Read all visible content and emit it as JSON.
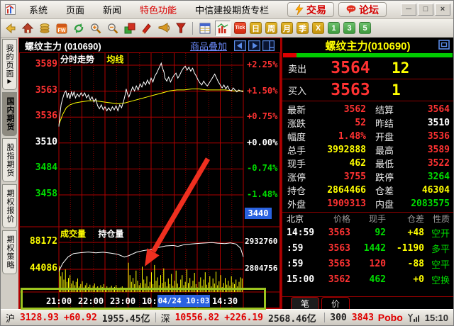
{
  "menu": {
    "items": [
      {
        "label": "系统"
      },
      {
        "label": "页面"
      },
      {
        "label": "新闻"
      },
      {
        "label": "特色功能"
      },
      {
        "label": "中信建投期货专栏"
      }
    ],
    "trade_button": "交易",
    "forum_button": "论坛",
    "window_controls": {
      "minimize": "─",
      "maximize": "□",
      "close": "×"
    }
  },
  "toolbar": {
    "labels": {
      "tick": "Tick",
      "day": "日",
      "week": "周",
      "month": "月",
      "season": "季",
      "x": "X",
      "m1": "1",
      "m3": "3",
      "m5": "5"
    }
  },
  "sidebar": {
    "tabs": [
      {
        "label": "我的页面",
        "arrow": "▶",
        "selected": false
      },
      {
        "label": "国内期货",
        "selected": true
      },
      {
        "label": "股指期货",
        "selected": false
      },
      {
        "label": "期权报价",
        "selected": false
      },
      {
        "label": "期权策略",
        "selected": false
      }
    ]
  },
  "chart": {
    "symbol_title": "螺纹主力 (010690)",
    "overlay_link": "商品叠加",
    "pane_title": "分时走势",
    "ma_label": "均线",
    "volume_label": "成交量",
    "oi_label": "持仓量",
    "cursor_time": "04/24 10:03",
    "price_tag": "3440",
    "price_axis": [
      {
        "text": "3589",
        "color": "#ff3232"
      },
      {
        "text": "3563",
        "color": "#ff3232"
      },
      {
        "text": "3536",
        "color": "#ff3232"
      },
      {
        "text": "3510",
        "color": "#ffffff"
      },
      {
        "text": "3484",
        "color": "#00dd00"
      },
      {
        "text": "3458",
        "color": "#00dd00"
      }
    ],
    "pct_axis": [
      {
        "text": "+2.25%",
        "color": "#ff3232"
      },
      {
        "text": "+1.50%",
        "color": "#ff3232"
      },
      {
        "text": "+0.75%",
        "color": "#ff3232"
      },
      {
        "text": "+0.00%",
        "color": "#ffffff"
      },
      {
        "text": "-0.74%",
        "color": "#00dd00"
      },
      {
        "text": "-1.48%",
        "color": "#00dd00"
      }
    ],
    "vol_axis_left": [
      "88172",
      "44086"
    ],
    "vol_axis_right": [
      "2932760",
      "2804756"
    ],
    "time_axis": [
      {
        "text": "21:00",
        "f": 0.0
      },
      {
        "text": "22:00",
        "f": 0.172
      },
      {
        "text": "23:00",
        "f": 0.345
      },
      {
        "text": "10:00",
        "f": 0.52
      },
      {
        "text": "14:30",
        "f": 0.9
      }
    ]
  },
  "chart_data": {
    "type": "line",
    "title": "分时走势",
    "y_levels": [
      3589,
      3563,
      3536,
      3510,
      3484,
      3458
    ],
    "pct_levels": [
      "+2.25%",
      "+1.50%",
      "+0.75%",
      "+0.00%",
      "-0.74%",
      "-1.48%"
    ],
    "price_line": [
      [
        0,
        3527
      ],
      [
        0.006,
        3540
      ],
      [
        0.012,
        3549
      ],
      [
        0.02,
        3555
      ],
      [
        0.03,
        3561
      ],
      [
        0.038,
        3563
      ],
      [
        0.045,
        3556
      ],
      [
        0.052,
        3561
      ],
      [
        0.06,
        3555
      ],
      [
        0.068,
        3562
      ],
      [
        0.075,
        3558
      ],
      [
        0.082,
        3562
      ],
      [
        0.09,
        3556
      ],
      [
        0.1,
        3560
      ],
      [
        0.11,
        3557
      ],
      [
        0.12,
        3561
      ],
      [
        0.13,
        3558
      ],
      [
        0.14,
        3561
      ],
      [
        0.15,
        3556
      ],
      [
        0.16,
        3559
      ],
      [
        0.17,
        3554
      ],
      [
        0.18,
        3557
      ],
      [
        0.19,
        3552
      ],
      [
        0.2,
        3555
      ],
      [
        0.21,
        3548
      ],
      [
        0.22,
        3545
      ],
      [
        0.23,
        3549
      ],
      [
        0.24,
        3544
      ],
      [
        0.25,
        3547
      ],
      [
        0.26,
        3543
      ],
      [
        0.27,
        3546
      ],
      [
        0.28,
        3543
      ],
      [
        0.29,
        3547
      ],
      [
        0.3,
        3544
      ],
      [
        0.31,
        3548
      ],
      [
        0.32,
        3543
      ],
      [
        0.33,
        3549
      ],
      [
        0.34,
        3546
      ],
      [
        0.35,
        3552
      ],
      [
        0.358,
        3558
      ],
      [
        0.365,
        3565
      ],
      [
        0.372,
        3560
      ],
      [
        0.38,
        3557
      ],
      [
        0.39,
        3562
      ],
      [
        0.4,
        3567
      ],
      [
        0.41,
        3563
      ],
      [
        0.42,
        3568
      ],
      [
        0.43,
        3564
      ],
      [
        0.44,
        3570
      ],
      [
        0.45,
        3567
      ],
      [
        0.46,
        3572
      ],
      [
        0.47,
        3569
      ],
      [
        0.48,
        3574
      ],
      [
        0.49,
        3570
      ],
      [
        0.5,
        3576
      ],
      [
        0.51,
        3572
      ],
      [
        0.52,
        3578
      ],
      [
        0.53,
        3581
      ],
      [
        0.54,
        3585
      ],
      [
        0.55,
        3589
      ],
      [
        0.555,
        3591
      ],
      [
        0.56,
        3587
      ],
      [
        0.57,
        3582
      ],
      [
        0.575,
        3576
      ],
      [
        0.585,
        3573
      ],
      [
        0.595,
        3577
      ],
      [
        0.605,
        3572
      ],
      [
        0.615,
        3576
      ],
      [
        0.625,
        3579
      ],
      [
        0.635,
        3581
      ],
      [
        0.645,
        3576
      ],
      [
        0.655,
        3579
      ],
      [
        0.665,
        3583
      ],
      [
        0.675,
        3586
      ],
      [
        0.685,
        3588
      ],
      [
        0.695,
        3584
      ],
      [
        0.705,
        3587
      ],
      [
        0.715,
        3583
      ],
      [
        0.725,
        3586
      ],
      [
        0.735,
        3581
      ],
      [
        0.745,
        3578
      ],
      [
        0.755,
        3574
      ],
      [
        0.765,
        3571
      ],
      [
        0.775,
        3569
      ],
      [
        0.785,
        3573
      ],
      [
        0.795,
        3570
      ],
      [
        0.805,
        3568
      ],
      [
        0.815,
        3571
      ],
      [
        0.825,
        3574
      ],
      [
        0.835,
        3577
      ],
      [
        0.845,
        3580
      ],
      [
        0.855,
        3576
      ],
      [
        0.865,
        3572
      ],
      [
        0.875,
        3569
      ],
      [
        0.885,
        3566
      ],
      [
        0.895,
        3569
      ],
      [
        0.905,
        3565
      ],
      [
        0.915,
        3568
      ],
      [
        0.925,
        3564
      ],
      [
        0.935,
        3563
      ],
      [
        0.945,
        3566
      ],
      [
        0.955,
        3564
      ],
      [
        0.965,
        3562
      ],
      [
        0.975,
        3564
      ],
      [
        0.985,
        3563
      ],
      [
        1,
        3562
      ]
    ],
    "ma_line": [
      [
        0,
        3529
      ],
      [
        0.02,
        3539
      ],
      [
        0.04,
        3546
      ],
      [
        0.06,
        3549
      ],
      [
        0.09,
        3551
      ],
      [
        0.12,
        3552
      ],
      [
        0.16,
        3553
      ],
      [
        0.2,
        3553
      ],
      [
        0.24,
        3552
      ],
      [
        0.28,
        3551
      ],
      [
        0.32,
        3550
      ],
      [
        0.36,
        3551
      ],
      [
        0.4,
        3553
      ],
      [
        0.44,
        3555
      ],
      [
        0.48,
        3557
      ],
      [
        0.52,
        3559
      ],
      [
        0.56,
        3561
      ],
      [
        0.6,
        3563
      ],
      [
        0.64,
        3564
      ],
      [
        0.68,
        3564
      ],
      [
        0.72,
        3565
      ],
      [
        0.76,
        3565
      ],
      [
        0.8,
        3564
      ],
      [
        0.85,
        3564
      ],
      [
        0.9,
        3564
      ],
      [
        0.95,
        3563
      ],
      [
        1,
        3563
      ]
    ],
    "volume_axis_max": 88172,
    "volume_bars_thousands": [
      46,
      28,
      35,
      22,
      40,
      18,
      25,
      30,
      15,
      20,
      12,
      18,
      24,
      10,
      14,
      19,
      8,
      12,
      16,
      9,
      13,
      7,
      11,
      15,
      8,
      10,
      6,
      12,
      9,
      14,
      7,
      10,
      5,
      8,
      11,
      6,
      9,
      12,
      7,
      5,
      8,
      10,
      6,
      4,
      7,
      52,
      30,
      18,
      25,
      14,
      38,
      20,
      12,
      16,
      45,
      22,
      15,
      28,
      10,
      18,
      35,
      14,
      48,
      20,
      26,
      12,
      30,
      16,
      42,
      18,
      10,
      24,
      14,
      32,
      11,
      20,
      38,
      15,
      9,
      22,
      30,
      12,
      18,
      40,
      16,
      25,
      10,
      20,
      34,
      14,
      8,
      18,
      26,
      11,
      22,
      35,
      13,
      17,
      28,
      10,
      24,
      15,
      36,
      12,
      19,
      30,
      9,
      16,
      25,
      13,
      20,
      11,
      28,
      17,
      14,
      22,
      10,
      18,
      26,
      24
    ],
    "oi_axis": [
      2932760,
      2804756
    ],
    "oi_line": [
      [
        0,
        2795000
      ],
      [
        0.02,
        2832000
      ],
      [
        0.05,
        2864000
      ],
      [
        0.08,
        2880000
      ],
      [
        0.12,
        2884000
      ],
      [
        0.16,
        2887000
      ],
      [
        0.2,
        2883000
      ],
      [
        0.24,
        2886000
      ],
      [
        0.28,
        2882000
      ],
      [
        0.32,
        2876000
      ],
      [
        0.355,
        2863000
      ],
      [
        0.38,
        2870000
      ],
      [
        0.42,
        2886000
      ],
      [
        0.46,
        2894000
      ],
      [
        0.5,
        2899000
      ],
      [
        0.54,
        2909000
      ],
      [
        0.58,
        2916000
      ],
      [
        0.62,
        2918000
      ],
      [
        0.645,
        2914000
      ],
      [
        0.68,
        2922000
      ],
      [
        0.72,
        2925000
      ],
      [
        0.76,
        2928000
      ],
      [
        0.8,
        2930000
      ],
      [
        0.83,
        2932000
      ],
      [
        0.86,
        2929000
      ],
      [
        0.9,
        2927000
      ],
      [
        0.93,
        2930000
      ],
      [
        0.96,
        2925000
      ],
      [
        0.985,
        2905000
      ],
      [
        1,
        2864466
      ]
    ]
  },
  "right_panel": {
    "title": "螺纹主力(010690)",
    "ratio_bar": {
      "red": 0.08,
      "green": 0.92
    },
    "ask": {
      "label": "卖出",
      "price": "3564",
      "qty": "12"
    },
    "bid": {
      "label": "买入",
      "price": "3563",
      "qty": "1"
    },
    "stats": [
      {
        "l1": "最新",
        "v1": "3562",
        "c1": "red",
        "l2": "结算",
        "v2": "3564",
        "c2": "red"
      },
      {
        "l1": "涨跌",
        "v1": "52",
        "c1": "red",
        "l2": "昨结",
        "v2": "3510",
        "c2": "white"
      },
      {
        "l1": "幅度",
        "v1": "1.48%",
        "c1": "red",
        "l2": "开盘",
        "v2": "3536",
        "c2": "red"
      },
      {
        "l1": "总手",
        "v1": "3992888",
        "c1": "yellow",
        "l2": "最高",
        "v2": "3589",
        "c2": "red"
      },
      {
        "l1": "现手",
        "v1": "462",
        "c1": "yellow",
        "l2": "最低",
        "v2": "3522",
        "c2": "red"
      },
      {
        "l1": "涨停",
        "v1": "3755",
        "c1": "red",
        "l2": "跌停",
        "v2": "3264",
        "c2": "green"
      },
      {
        "l1": "持仓",
        "v1": "2864466",
        "c1": "yellow",
        "l2": "仓差",
        "v2": "46304",
        "c2": "yellow"
      },
      {
        "l1": "外盘",
        "v1": "1909313",
        "c1": "red",
        "l2": "内盘",
        "v2": "2083575",
        "c2": "green"
      }
    ],
    "trades": {
      "headers": [
        "北京",
        "价格",
        "现手",
        "仓差",
        "性质"
      ],
      "rows": [
        {
          "time": "14:59",
          "price": "3563",
          "vol": "92",
          "volc": "green",
          "oi": "+48",
          "nature": "空开"
        },
        {
          "time": ":59",
          "price": "3563",
          "vol": "1442",
          "volc": "green",
          "oi": "-1190",
          "nature": "多平"
        },
        {
          "time": ":59",
          "price": "3563",
          "vol": "120",
          "volc": "red",
          "oi": "-88",
          "nature": "空平"
        },
        {
          "time": "15:00",
          "price": "3562",
          "vol": "462",
          "volc": "green",
          "oi": "+0",
          "nature": "空换"
        }
      ]
    },
    "tabs": [
      {
        "label": "笔",
        "active": true
      },
      {
        "label": "价",
        "active": false
      }
    ]
  },
  "status_bar": {
    "sh_label": "沪",
    "sh_index": "3128.93",
    "sh_change": "+60.92",
    "sh_amount": "1955.45亿",
    "sz_label": "深",
    "sz_index": "10556.82",
    "sz_change": "+226.19",
    "sz_amount": "2568.46亿",
    "hs300_label": "300",
    "hs300_value": "3843",
    "brand": "Pobo",
    "time": "15:10"
  },
  "annotations": {
    "highlight_box_color": "#9cc41e",
    "arrow_color": "#ef2f1f"
  }
}
